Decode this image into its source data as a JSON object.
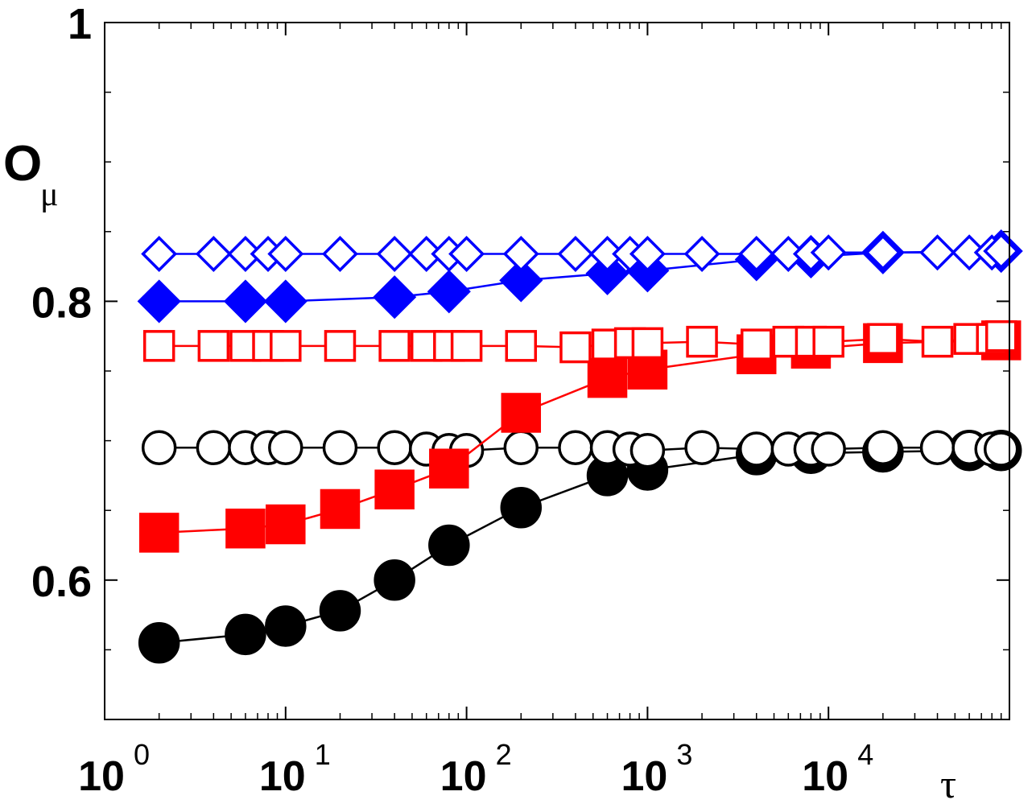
{
  "chart_data": {
    "type": "scatter",
    "xscale": "log",
    "xlim": [
      1,
      100000
    ],
    "ylim": [
      0.5,
      1.0
    ],
    "xlabel": "τ",
    "ylabel": "O",
    "ylabel_subscript": "μ",
    "x_ticks": [
      {
        "value": 1,
        "base": "10",
        "exp": "0"
      },
      {
        "value": 10,
        "base": "10",
        "exp": "1"
      },
      {
        "value": 100,
        "base": "10",
        "exp": "2"
      },
      {
        "value": 1000,
        "base": "10",
        "exp": "3"
      },
      {
        "value": 10000,
        "base": "10",
        "exp": "4"
      }
    ],
    "y_ticks": [
      {
        "value": 0.6,
        "label": "0.6"
      },
      {
        "value": 0.8,
        "label": "0.8"
      },
      {
        "value": 1.0,
        "label": "1"
      }
    ],
    "y_minor_ticks": [
      0.55,
      0.65,
      0.7,
      0.75,
      0.85,
      0.9,
      0.95
    ],
    "series": [
      {
        "marker": "circle",
        "filled": true,
        "color": "#000000",
        "size": "large",
        "points": [
          [
            2,
            0.555
          ],
          [
            6,
            0.561
          ],
          [
            10,
            0.567
          ],
          [
            20,
            0.578
          ],
          [
            40,
            0.6
          ],
          [
            80,
            0.625
          ],
          [
            200,
            0.652
          ],
          [
            600,
            0.675
          ],
          [
            1000,
            0.679
          ],
          [
            4000,
            0.69
          ],
          [
            8000,
            0.691
          ],
          [
            20000,
            0.692
          ],
          [
            60000,
            0.693
          ],
          [
            90000,
            0.693
          ]
        ]
      },
      {
        "marker": "circle",
        "filled": false,
        "color": "#000000",
        "size": "medium",
        "points": [
          [
            2,
            0.695
          ],
          [
            4,
            0.695
          ],
          [
            6,
            0.695
          ],
          [
            8,
            0.695
          ],
          [
            10,
            0.695
          ],
          [
            20,
            0.695
          ],
          [
            40,
            0.695
          ],
          [
            60,
            0.694
          ],
          [
            80,
            0.693
          ],
          [
            100,
            0.693
          ],
          [
            200,
            0.695
          ],
          [
            400,
            0.695
          ],
          [
            600,
            0.695
          ],
          [
            800,
            0.694
          ],
          [
            1000,
            0.693
          ],
          [
            2000,
            0.695
          ],
          [
            4000,
            0.694
          ],
          [
            6000,
            0.694
          ],
          [
            8000,
            0.694
          ],
          [
            10000,
            0.694
          ],
          [
            20000,
            0.695
          ],
          [
            40000,
            0.695
          ],
          [
            60000,
            0.695
          ],
          [
            80000,
            0.694
          ],
          [
            90000,
            0.694
          ]
        ]
      },
      {
        "marker": "square",
        "filled": true,
        "color": "#ff0000",
        "size": "large",
        "points": [
          [
            2,
            0.634
          ],
          [
            6,
            0.637
          ],
          [
            10,
            0.64
          ],
          [
            20,
            0.651
          ],
          [
            40,
            0.665
          ],
          [
            80,
            0.68
          ],
          [
            200,
            0.72
          ],
          [
            600,
            0.745
          ],
          [
            1000,
            0.751
          ],
          [
            4000,
            0.762
          ],
          [
            8000,
            0.766
          ],
          [
            20000,
            0.77
          ],
          [
            90000,
            0.772
          ]
        ]
      },
      {
        "marker": "square",
        "filled": false,
        "color": "#ff0000",
        "size": "medium",
        "points": [
          [
            2,
            0.768
          ],
          [
            4,
            0.768
          ],
          [
            6,
            0.768
          ],
          [
            8,
            0.768
          ],
          [
            10,
            0.768
          ],
          [
            20,
            0.768
          ],
          [
            40,
            0.768
          ],
          [
            60,
            0.768
          ],
          [
            80,
            0.768
          ],
          [
            100,
            0.768
          ],
          [
            200,
            0.768
          ],
          [
            400,
            0.767
          ],
          [
            600,
            0.769
          ],
          [
            800,
            0.77
          ],
          [
            1000,
            0.77
          ],
          [
            2000,
            0.771
          ],
          [
            4000,
            0.769
          ],
          [
            6000,
            0.771
          ],
          [
            8000,
            0.771
          ],
          [
            10000,
            0.771
          ],
          [
            20000,
            0.773
          ],
          [
            40000,
            0.771
          ],
          [
            60000,
            0.773
          ],
          [
            80000,
            0.773
          ],
          [
            90000,
            0.775
          ]
        ]
      },
      {
        "marker": "diamond",
        "filled": true,
        "color": "#0000ff",
        "size": "large",
        "points": [
          [
            2,
            0.8
          ],
          [
            6,
            0.8
          ],
          [
            10,
            0.8
          ],
          [
            40,
            0.803
          ],
          [
            80,
            0.807
          ],
          [
            200,
            0.815
          ],
          [
            600,
            0.82
          ],
          [
            1000,
            0.822
          ],
          [
            4000,
            0.83
          ],
          [
            8000,
            0.832
          ],
          [
            20000,
            0.835
          ],
          [
            90000,
            0.836
          ]
        ]
      },
      {
        "marker": "diamond",
        "filled": false,
        "color": "#0000ff",
        "size": "medium",
        "points": [
          [
            2,
            0.834
          ],
          [
            4,
            0.834
          ],
          [
            6,
            0.834
          ],
          [
            8,
            0.834
          ],
          [
            10,
            0.834
          ],
          [
            20,
            0.834
          ],
          [
            40,
            0.834
          ],
          [
            60,
            0.834
          ],
          [
            80,
            0.834
          ],
          [
            100,
            0.834
          ],
          [
            200,
            0.834
          ],
          [
            400,
            0.834
          ],
          [
            600,
            0.834
          ],
          [
            800,
            0.834
          ],
          [
            1000,
            0.834
          ],
          [
            2000,
            0.834
          ],
          [
            4000,
            0.834
          ],
          [
            6000,
            0.834
          ],
          [
            8000,
            0.834
          ],
          [
            10000,
            0.835
          ],
          [
            20000,
            0.835
          ],
          [
            40000,
            0.835
          ],
          [
            60000,
            0.835
          ],
          [
            80000,
            0.835
          ],
          [
            90000,
            0.836
          ]
        ]
      }
    ]
  }
}
